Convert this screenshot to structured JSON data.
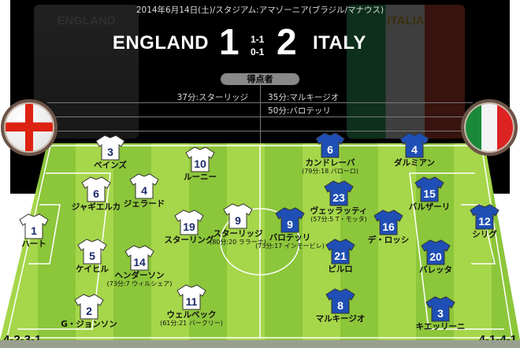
{
  "match": {
    "date_venue": "2014年6月14日(土)/スタジアム:アマゾーニア(ブラジル/マナウス)",
    "home_team": "ENGLAND",
    "away_team": "ITALY",
    "home_score": "1",
    "away_score": "2",
    "first_half": "1-1",
    "second_half": "0-1",
    "home_crest_text": "ENGLAND",
    "away_crest_text": "ITALIA"
  },
  "scorers": {
    "label": "得点者",
    "home": [
      "37分:スターリッジ"
    ],
    "away": [
      "35分:マルキージオ",
      "50分:バロテッリ"
    ]
  },
  "colors": {
    "home_shirt": "#ffffff",
    "home_number": "#1c2a6b",
    "away_shirt": "#1f4fb5",
    "away_number": "#ffffff",
    "pitch_light": "#a6d64a",
    "pitch_dark": "#8cc63a"
  },
  "home": {
    "formation": "4-2-3-1",
    "players": [
      {
        "number": "3",
        "name": "ベインズ"
      },
      {
        "number": "10",
        "name": "ルーニー"
      },
      {
        "number": "6",
        "name": "ジャギエルカ"
      },
      {
        "number": "4",
        "name": "ジェラード"
      },
      {
        "number": "1",
        "name": "ハート"
      },
      {
        "number": "19",
        "name": "スターリング"
      },
      {
        "number": "9",
        "name": "スターリッジ",
        "sub": "(80分:20 ララーナ)"
      },
      {
        "number": "5",
        "name": "ケイヒル"
      },
      {
        "number": "14",
        "name": "ヘンダーソン",
        "sub": "(73分:7 ウィルシェア)"
      },
      {
        "number": "2",
        "name": "G・ジョンソン"
      },
      {
        "number": "11",
        "name": "ウェルベック",
        "sub": "(61分:21 バークリー)"
      }
    ]
  },
  "away": {
    "formation": "4-1-4-1",
    "players": [
      {
        "number": "6",
        "name": "カンドレーバ",
        "sub": "(79分:18 パローロ)"
      },
      {
        "number": "4",
        "name": "ダルミアン"
      },
      {
        "number": "23",
        "name": "ヴェッラッティ",
        "sub": "(57分:5 T・モッタ)"
      },
      {
        "number": "15",
        "name": "バルザーリ"
      },
      {
        "number": "9",
        "name": "バロテッリ",
        "sub": "(73分:17 インモービレ)"
      },
      {
        "number": "16",
        "name": "デ・ロッシ"
      },
      {
        "number": "12",
        "name": "シリグ"
      },
      {
        "number": "21",
        "name": "ピルロ"
      },
      {
        "number": "20",
        "name": "バレッタ"
      },
      {
        "number": "8",
        "name": "マルキージオ"
      },
      {
        "number": "3",
        "name": "キエッリーニ"
      }
    ]
  }
}
